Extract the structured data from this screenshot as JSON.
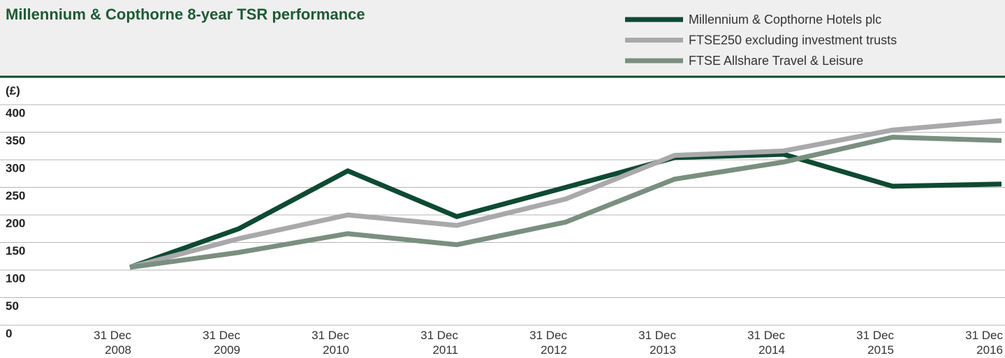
{
  "chart_data": {
    "type": "line",
    "title": "Millennium & Copthorne 8-year TSR performance",
    "y_label": "(£)",
    "categories": [
      "31 Dec 2008",
      "31 Dec 2009",
      "31 Dec 2010",
      "31 Dec 2011",
      "31 Dec 2012",
      "31 Dec 2013",
      "31 Dec 2014",
      "31 Dec 2015",
      "31 Dec 2016"
    ],
    "series": [
      {
        "name": "Millennium & Copthorne Hotels plc",
        "color": "#0e4a32",
        "values": [
          105,
          175,
          280,
          197,
          250,
          304,
          310,
          252,
          256
        ]
      },
      {
        "name": "FTSE250 excluding investment trusts",
        "color": "#a9a9ab",
        "values": [
          105,
          157,
          200,
          181,
          229,
          308,
          316,
          354,
          371
        ]
      },
      {
        "name": "FTSE Allshare Travel & Leisure",
        "color": "#7a8f7f",
        "values": [
          105,
          132,
          166,
          146,
          187,
          265,
          296,
          341,
          335
        ]
      }
    ],
    "ylim": [
      0,
      400
    ],
    "yticks": [
      0,
      50,
      100,
      150,
      200,
      250,
      300,
      350,
      400
    ],
    "grid": true,
    "legend": "top-right"
  }
}
